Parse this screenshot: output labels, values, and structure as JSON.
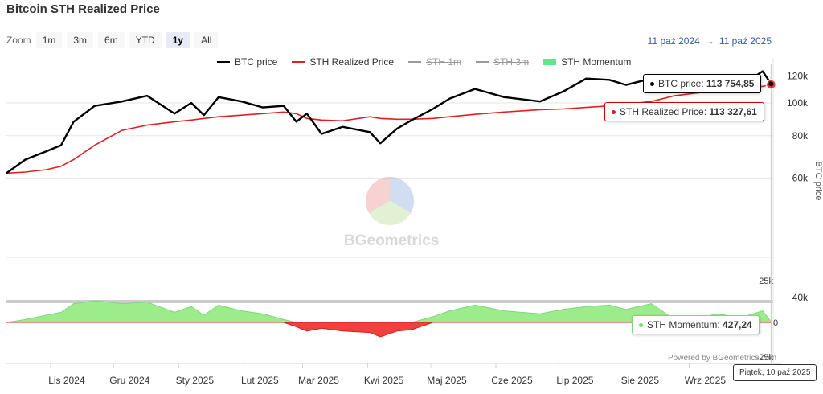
{
  "title": "Bitcoin STH Realized Price",
  "zoom": {
    "label": "Zoom",
    "buttons": [
      "1m",
      "3m",
      "6m",
      "YTD",
      "1y",
      "All"
    ],
    "active": "1y"
  },
  "range": {
    "from": "11 paź 2024",
    "arrow": "→",
    "to": "11 paź 2025"
  },
  "legend": [
    {
      "name": "BTC price",
      "color": "#000000",
      "hidden": false
    },
    {
      "name": "STH Realized Price",
      "color": "#e02020",
      "hidden": false
    },
    {
      "name": "STH 1m",
      "color": "#999999",
      "hidden": true
    },
    {
      "name": "STH 3m",
      "color": "#999999",
      "hidden": true
    },
    {
      "name": "STH Momentum",
      "color": "#5ee68a",
      "hidden": false
    }
  ],
  "tooltips": {
    "btc_label": "BTC price:",
    "btc_value": "113 754,85",
    "sth_label": "STH Realized Price:",
    "sth_value": "113 327,61",
    "mom_label": "STH Momentum:",
    "mom_value": "427,24"
  },
  "date_label": "Piątek, 10 paź 2025",
  "credit": "Powered by BGeometrics.com",
  "watermark": "BGeometrics",
  "colors": {
    "btc": "#000000",
    "sth": "#e02020",
    "mom_pos": "#9cec8c",
    "mom_neg": "#f04040",
    "tooltip_text": "#333333"
  },
  "chart_data": {
    "type": "line",
    "x_axis": {
      "ticks": [
        "Lis 2024",
        "Gru 2024",
        "Sty 2025",
        "Lut 2025",
        "Mar 2025",
        "Kwi 2025",
        "Maj 2025",
        "Cze 2025",
        "Lip 2025",
        "Sie 2025",
        "Wrz 2025"
      ],
      "range": [
        "2024-10-11",
        "2025-10-11"
      ]
    },
    "y_axis_main": {
      "label": "BTC price",
      "scale": "log",
      "ticks": [
        "120k",
        "100k",
        "80k",
        "60k",
        "40k"
      ],
      "range": [
        35000,
        130000
      ]
    },
    "y_axis_momentum": {
      "ticks": [
        "25k",
        "0",
        "-25k"
      ],
      "range": [
        -25000,
        25000
      ]
    },
    "x": [
      "2024-10-11",
      "2024-10-20",
      "2024-10-30",
      "2024-11-06",
      "2024-11-12",
      "2024-11-22",
      "2024-12-05",
      "2024-12-17",
      "2024-12-30",
      "2025-01-07",
      "2025-01-13",
      "2025-01-20",
      "2025-01-31",
      "2025-02-10",
      "2025-02-20",
      "2025-02-26",
      "2025-03-03",
      "2025-03-10",
      "2025-03-20",
      "2025-04-02",
      "2025-04-07",
      "2025-04-15",
      "2025-04-22",
      "2025-05-02",
      "2025-05-10",
      "2025-05-22",
      "2025-06-05",
      "2025-06-22",
      "2025-07-03",
      "2025-07-14",
      "2025-07-25",
      "2025-08-02",
      "2025-08-14",
      "2025-08-25",
      "2025-09-05",
      "2025-09-15",
      "2025-09-25",
      "2025-10-06",
      "2025-10-10"
    ],
    "series": [
      {
        "name": "BTC price",
        "values": [
          62000,
          68000,
          72000,
          75000,
          88000,
          98000,
          101000,
          105000,
          93000,
          100000,
          92000,
          104000,
          101000,
          97000,
          98000,
          88000,
          93000,
          81000,
          85000,
          82000,
          76000,
          84000,
          89000,
          96000,
          103000,
          110000,
          104000,
          101000,
          108000,
          118000,
          117000,
          113000,
          118000,
          111000,
          111000,
          116000,
          112000,
          124000,
          113750
        ]
      },
      {
        "name": "STH Realized Price",
        "values": [
          62000,
          62500,
          63500,
          65000,
          68000,
          75000,
          83000,
          86000,
          88000,
          89000,
          90000,
          91000,
          92000,
          93000,
          94000,
          93000,
          90000,
          89000,
          88500,
          91000,
          90000,
          89500,
          89500,
          90000,
          91000,
          92500,
          94000,
          95500,
          96000,
          97000,
          98000,
          99000,
          101000,
          105000,
          107000,
          109000,
          110000,
          112000,
          113330
        ]
      },
      {
        "name": "STH Momentum",
        "values": [
          0,
          2000,
          5000,
          7000,
          13000,
          15000,
          13000,
          14000,
          7000,
          11000,
          5000,
          12000,
          8000,
          6000,
          2000,
          -3000,
          -6000,
          -4000,
          -6000,
          -7000,
          -10000,
          -6000,
          -5000,
          4000,
          8000,
          12000,
          8000,
          6000,
          9000,
          11000,
          12000,
          9000,
          13000,
          2000,
          3000,
          6000,
          3000,
          8000,
          430
        ]
      }
    ]
  }
}
